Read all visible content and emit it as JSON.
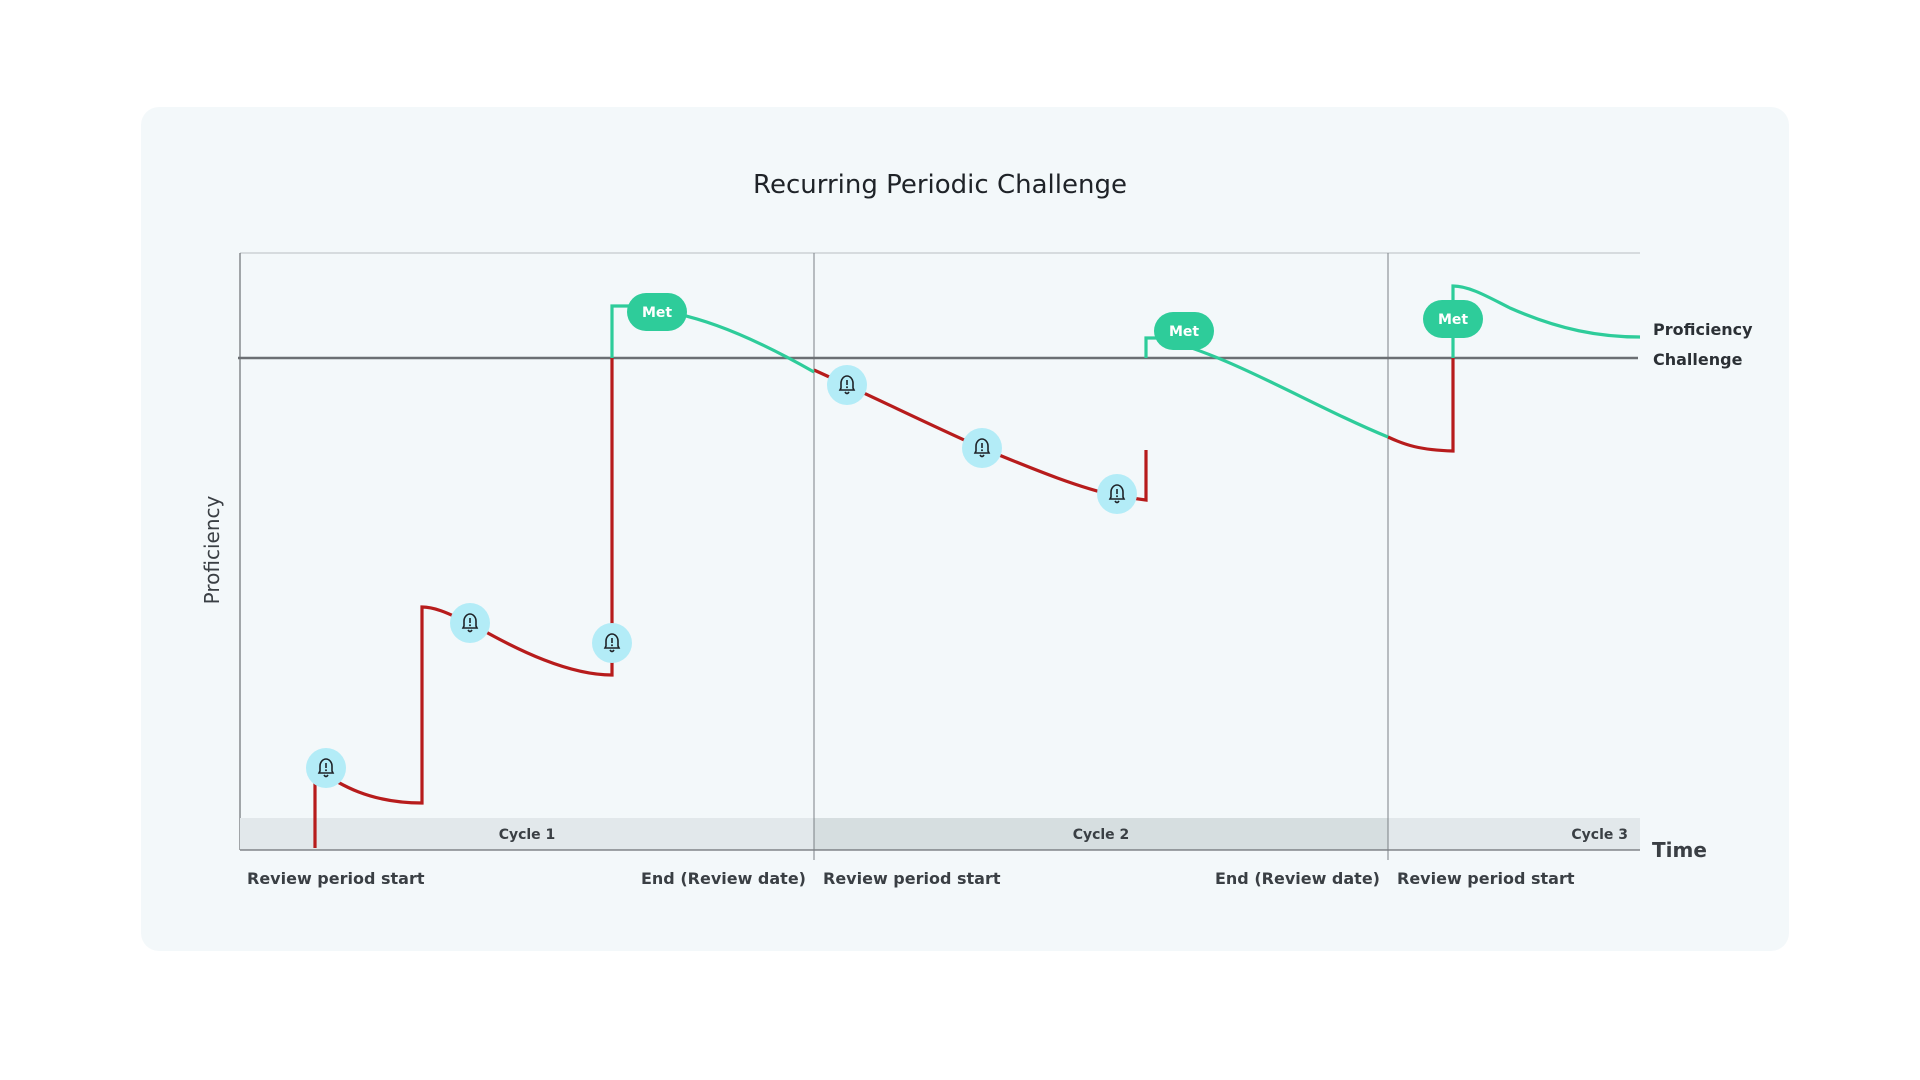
{
  "title": "Recurring Periodic Challenge",
  "y_axis_label": "Proficiency",
  "x_axis_label": "Time",
  "legend": {
    "proficiency": "Proficiency",
    "challenge": "Challenge"
  },
  "cycles": [
    "Cycle 1",
    "Cycle 2",
    "Cycle 3"
  ],
  "period_labels": {
    "c1_start": "Review period start",
    "c1_end": "End (Review date)",
    "c2_start": "Review period start",
    "c2_end": "End (Review date)",
    "c3_start": "Review period start"
  },
  "badge_label": "Met",
  "colors": {
    "below_challenge": "#b71c1c",
    "above_challenge": "#2ecc9a",
    "challenge_line": "#6b6f73",
    "alert_bubble": "#b3ecf7",
    "cycle_band_a": "#e2e8eb",
    "cycle_band_b": "#d6dee0"
  },
  "icons": {
    "alert": "bell-alert-icon"
  }
}
